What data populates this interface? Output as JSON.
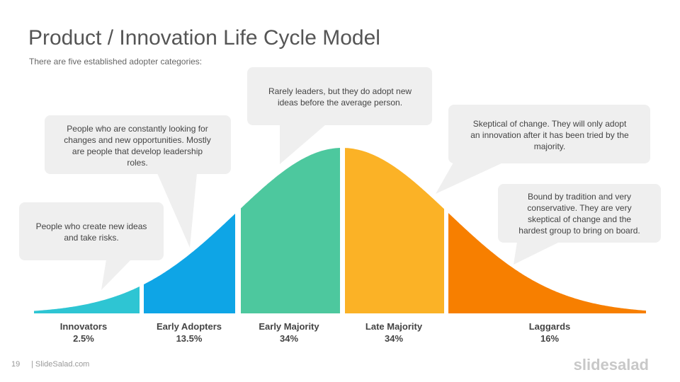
{
  "header": {
    "title": "Product / Innovation Life Cycle Model",
    "subtitle": "There are five established adopter categories:"
  },
  "callouts": [
    {
      "lines": [
        "People who create new ideas",
        "and take risks."
      ]
    },
    {
      "lines": [
        "People who are constantly looking for",
        "changes and new opportunities. Mostly",
        "are people that develop leadership",
        "roles."
      ]
    },
    {
      "lines": [
        "Rarely leaders, but they do adopt new",
        "ideas before the average person."
      ]
    },
    {
      "lines": [
        "Skeptical of change. They will only adopt",
        "an innovation after it has been tried by the",
        "majority."
      ]
    },
    {
      "lines": [
        "Bound by tradition and very",
        "conservative. They are very",
        "skeptical of change and the",
        "hardest group to bring on board."
      ]
    }
  ],
  "segments": [
    {
      "label": "Innovators",
      "share": "2.5%"
    },
    {
      "label": "Early Adopters",
      "share": "13.5%"
    },
    {
      "label": "Early Majority",
      "share": "34%"
    },
    {
      "label": "Late Majority",
      "share": "34%"
    },
    {
      "label": "Laggards",
      "share": "16%"
    }
  ],
  "footer": {
    "page": "19",
    "site": "| SlideSalad.com",
    "logo": "slidesalad"
  }
}
